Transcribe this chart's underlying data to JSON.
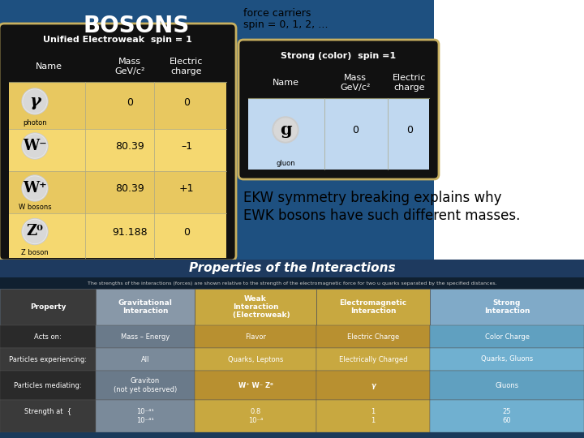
{
  "bg_color": "#1e5080",
  "title_bosons": "BOSONS",
  "subtitle_line1": "force carriers",
  "subtitle_line2": "spin = 0, 1, 2, …",
  "annotation_line1": "EKW symmetry breaking explains why",
  "annotation_line2": "EWK bosons have such different masses.",
  "ewk_header": "Unified Electroweak  spin = 1",
  "ewk_col1": "Name",
  "ewk_col2": "Mass\nGeV/c²",
  "ewk_col3": "Electric\ncharge",
  "ewk_symbols": [
    "γ",
    "W⁻",
    "W⁺",
    "Z⁰"
  ],
  "ewk_sublabels": [
    "photon",
    "",
    "W bosons",
    "Z boson"
  ],
  "ewk_mass": [
    "0",
    "80.39",
    "80.39",
    "91.188"
  ],
  "ewk_charge": [
    "0",
    "–1",
    "+1",
    "0"
  ],
  "strong_header": "Strong (color)  spin =1",
  "strong_col1": "Name",
  "strong_col2": "Mass\nGeV/c²",
  "strong_col3": "Electric\ncharge",
  "strong_symbol": "g",
  "strong_sublabel": "gluon",
  "strong_mass": "0",
  "strong_charge": "0",
  "int_title": "Properties of the Interactions",
  "int_subtitle": "The strengths of the interactions (forces) are shown relative to the strength of the electromagnetic force for two u quarks separated by the specified distances.",
  "int_col_headers": [
    "Property",
    "Gravitational\nInteraction",
    "Weak\nInteraction\n        (Electroweak)",
    "Electromagnetic\nInteraction",
    "Strong\nInteraction"
  ],
  "int_col_bg": [
    "#3a3a3a",
    "#8090a0",
    "#c8a840",
    "#c8a840",
    "#80b0d0"
  ],
  "int_rows": [
    [
      "Acts on:",
      "Mass – Energy",
      "Flavor",
      "Electric Charge",
      "Color Charge"
    ],
    [
      "Particles experiencing:",
      "All",
      "Quarks, Leptons",
      "Electrically Charged",
      "Quarks, Gluons"
    ],
    [
      "Particles mediating:",
      "Graviton\n(not yet observed)",
      "W⁺ W⁻ Z⁰",
      "γ",
      "Gluons"
    ],
    [
      "Strength at  {\n                    ",
      "10⁻⁴¹\n10⁻⁴¹",
      "0.8\n10⁻⁴",
      "1\n1",
      "25\n60"
    ]
  ],
  "int_row_bg": [
    [
      "#2a2a2a",
      "#6a7a8a",
      "#b89030",
      "#b89030",
      "#60a0c0"
    ],
    [
      "#3a3a3a",
      "#7a8a9a",
      "#c8a840",
      "#c8a840",
      "#70b0d0"
    ],
    [
      "#2a2a2a",
      "#6a7a8a",
      "#b89030",
      "#b89030",
      "#60a0c0"
    ],
    [
      "#3a3a3a",
      "#7a8a9a",
      "#c8a840",
      "#c8a840",
      "#70b0d0"
    ]
  ]
}
